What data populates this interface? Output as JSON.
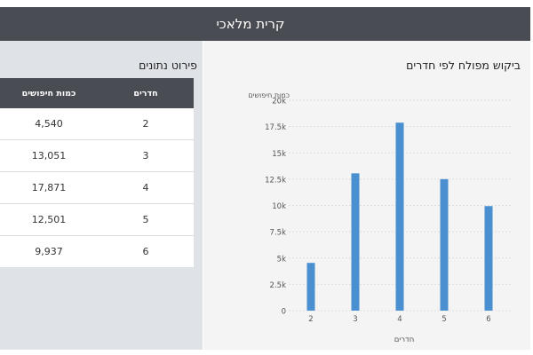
{
  "header": {
    "title": "קרית מלאכי"
  },
  "table_panel": {
    "title": "פירוט נתונים",
    "columns": {
      "rooms": "חדרים",
      "searches": "כמות חיפושים"
    },
    "rows": [
      {
        "rooms": "2",
        "searches": "4,540"
      },
      {
        "rooms": "3",
        "searches": "13,051"
      },
      {
        "rooms": "4",
        "searches": "17,871"
      },
      {
        "rooms": "5",
        "searches": "12,501"
      },
      {
        "rooms": "6",
        "searches": "9,937"
      }
    ]
  },
  "chart_panel": {
    "title": "ביקוש מפולח לפי חדרים"
  },
  "chart_data": {
    "type": "bar",
    "title": "ביקוש מפולח לפי חדרים",
    "xlabel": "חדרים",
    "ylabel": "כמות חיפושים",
    "categories": [
      "2",
      "3",
      "4",
      "5",
      "6"
    ],
    "values": [
      4540,
      13051,
      17871,
      12501,
      9937
    ],
    "ylim": [
      0,
      20000
    ],
    "yticks": [
      0,
      2500,
      5000,
      7500,
      10000,
      12500,
      15000,
      17500,
      20000
    ],
    "ytick_labels": [
      "0",
      "2.5k",
      "5k",
      "7.5k",
      "10k",
      "12.5k",
      "15k",
      "17.5k",
      "20k"
    ],
    "grid": true,
    "bar_color": "#4a8fd0"
  }
}
